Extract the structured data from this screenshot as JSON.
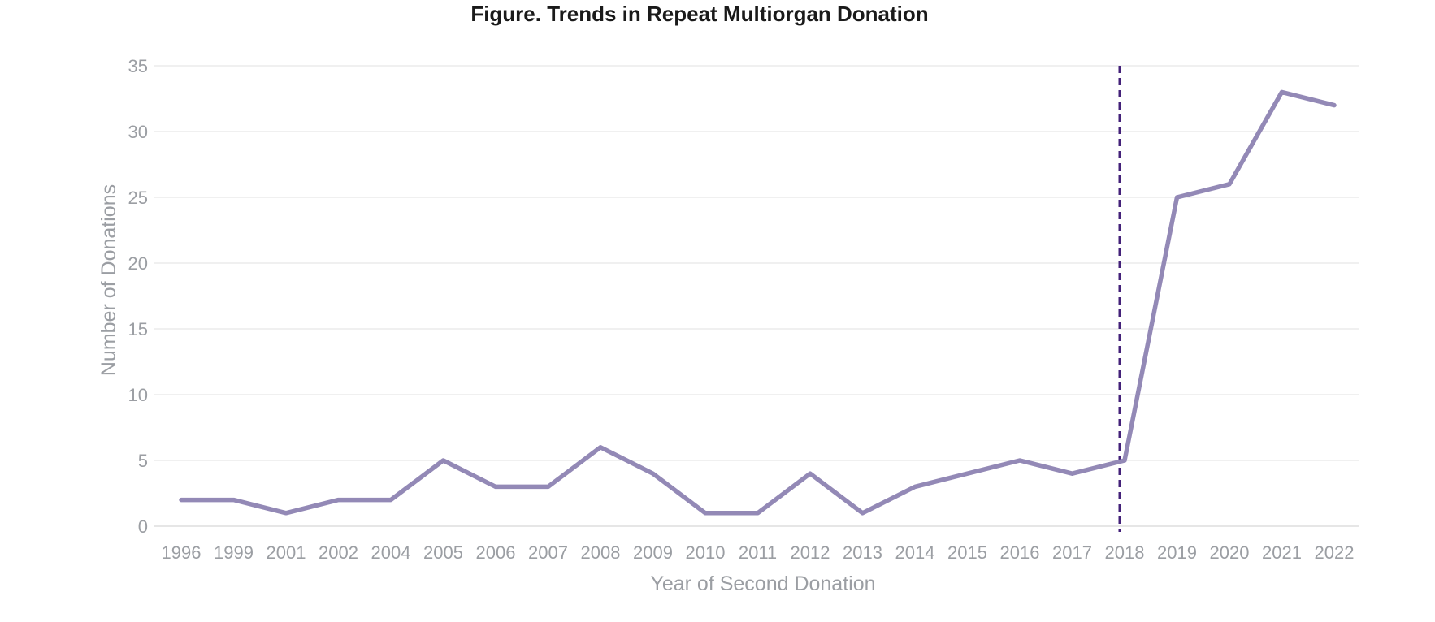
{
  "page": {
    "background": "#ffffff"
  },
  "chart_data": {
    "type": "line",
    "title": "Figure. Trends in Repeat Multiorgan Donation",
    "xlabel": "Year of Second Donation",
    "ylabel": "Number of Donations",
    "categories": [
      "1996",
      "1999",
      "2001",
      "2002",
      "2004",
      "2005",
      "2006",
      "2007",
      "2008",
      "2009",
      "2010",
      "2011",
      "2012",
      "2013",
      "2014",
      "2015",
      "2016",
      "2017",
      "2018",
      "2019",
      "2020",
      "2021",
      "2022"
    ],
    "values": [
      2,
      2,
      1,
      2,
      2,
      5,
      3,
      3,
      6,
      4,
      1,
      1,
      4,
      1,
      3,
      4,
      5,
      4,
      5,
      25,
      26,
      33,
      32
    ],
    "yticks": [
      0,
      5,
      10,
      15,
      20,
      25,
      30,
      35
    ],
    "ylim": [
      0,
      35
    ],
    "grid": true,
    "legend_position": "none",
    "reference_line": {
      "category": "2018",
      "style": "dashed",
      "orientation": "vertical"
    },
    "colors": {
      "series_line": "#9389b6",
      "reference_line": "#432179",
      "tick_label": "#9b9ea3",
      "axis_title": "#9b9ea3",
      "gridline": "#ececec",
      "baseline": "#e6e6e6",
      "title_text": "#1a1a1a"
    }
  }
}
